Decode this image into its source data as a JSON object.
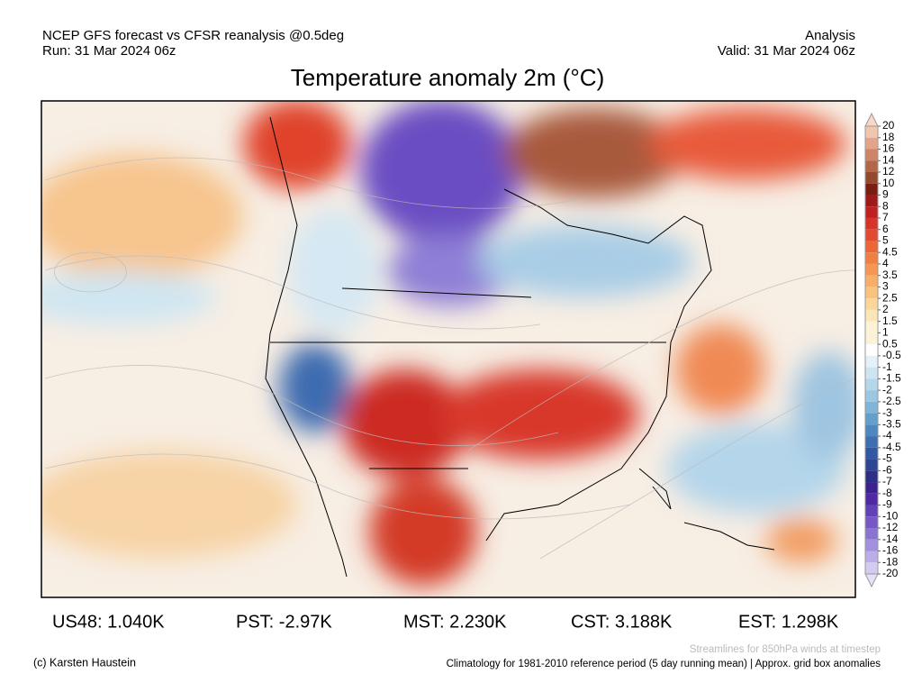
{
  "header": {
    "left_line1": "NCEP GFS forecast vs CFSR reanalysis @0.5deg",
    "left_line2": "Run: 31 Mar 2024 06z",
    "right_line1": "Analysis",
    "right_line2": "Valid: 31 Mar 2024 06z",
    "title": "Temperature anomaly 2m (°C)"
  },
  "colorbar": {
    "ticks": [
      20,
      18,
      16,
      14,
      12,
      10,
      9,
      8,
      7,
      6,
      5,
      4.5,
      4,
      3.5,
      3,
      2.5,
      2,
      1.5,
      1,
      0.5,
      -0.5,
      -1,
      -1.5,
      -2,
      -2.5,
      -3,
      -3.5,
      -4,
      -4.5,
      -5,
      -6,
      -7,
      -8,
      -9,
      -10,
      -12,
      -14,
      -16,
      -18,
      -20
    ]
  },
  "stats": [
    "US48: 1.040K",
    "PST: -2.97K",
    "MST: 2.230K",
    "CST: 3.188K",
    "EST: 1.298K"
  ],
  "footer": {
    "credit": "(c) Karsten Haustein",
    "streamlines_note": "Streamlines for 850hPa winds at timestep",
    "climatology_note": "Climatology for 1981-2010 reference period (5 day running mean) | Approx. grid box anomalies"
  }
}
